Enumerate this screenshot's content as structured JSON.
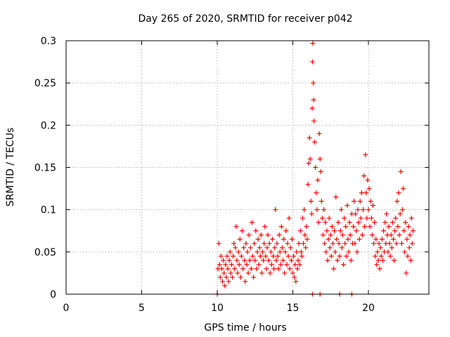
{
  "chart_data": {
    "type": "scatter",
    "title": "Day 265 of 2020, SRMTID for receiver p042",
    "xlabel": "GPS time / hours",
    "ylabel": "SRMTID / TECUs",
    "xlim": [
      0,
      24
    ],
    "ylim": [
      0,
      0.3
    ],
    "x_ticks": [
      0,
      5,
      10,
      15,
      20
    ],
    "x_tick_labels": [
      "0",
      "5",
      "10",
      "15",
      "20"
    ],
    "y_ticks": [
      0,
      0.05,
      0.1,
      0.15,
      0.2,
      0.25,
      0.3
    ],
    "y_tick_labels": [
      "0",
      "0.05",
      "0.1",
      "0.15",
      "0.2",
      "0.25",
      "0.3"
    ],
    "grid": true,
    "marker": "plus",
    "color": "#ff0000",
    "series": [
      {
        "name": "SRMTID",
        "points": [
          [
            10.0,
            0.0
          ],
          [
            10.05,
            0.03
          ],
          [
            10.1,
            0.06
          ],
          [
            10.15,
            0.035
          ],
          [
            10.2,
            0.02
          ],
          [
            10.25,
            0.045
          ],
          [
            10.3,
            0.03
          ],
          [
            10.35,
            0.015
          ],
          [
            10.4,
            0.04
          ],
          [
            10.45,
            0.025
          ],
          [
            10.5,
            0.01
          ],
          [
            10.55,
            0.035
          ],
          [
            10.6,
            0.02
          ],
          [
            10.65,
            0.045
          ],
          [
            10.7,
            0.03
          ],
          [
            10.75,
            0.015
          ],
          [
            10.8,
            0.04
          ],
          [
            10.85,
            0.05
          ],
          [
            10.9,
            0.025
          ],
          [
            10.95,
            0.035
          ],
          [
            11.0,
            0.02
          ],
          [
            11.05,
            0.045
          ],
          [
            11.1,
            0.06
          ],
          [
            11.15,
            0.03
          ],
          [
            11.2,
            0.055
          ],
          [
            11.25,
            0.08
          ],
          [
            11.3,
            0.04
          ],
          [
            11.35,
            0.025
          ],
          [
            11.4,
            0.05
          ],
          [
            11.45,
            0.035
          ],
          [
            11.5,
            0.065
          ],
          [
            11.55,
            0.02
          ],
          [
            11.6,
            0.045
          ],
          [
            11.65,
            0.075
          ],
          [
            11.7,
            0.03
          ],
          [
            11.75,
            0.055
          ],
          [
            11.8,
            0.04
          ],
          [
            11.85,
            0.015
          ],
          [
            11.9,
            0.06
          ],
          [
            11.95,
            0.035
          ],
          [
            12.0,
            0.05
          ],
          [
            12.05,
            0.025
          ],
          [
            12.1,
            0.07
          ],
          [
            12.15,
            0.04
          ],
          [
            12.2,
            0.055
          ],
          [
            12.25,
            0.03
          ],
          [
            12.3,
            0.085
          ],
          [
            12.35,
            0.045
          ],
          [
            12.4,
            0.02
          ],
          [
            12.45,
            0.06
          ],
          [
            12.5,
            0.04
          ],
          [
            12.55,
            0.075
          ],
          [
            12.6,
            0.03
          ],
          [
            12.65,
            0.05
          ],
          [
            12.7,
            0.065
          ],
          [
            12.75,
            0.035
          ],
          [
            12.8,
            0.055
          ],
          [
            12.85,
            0.045
          ],
          [
            12.9,
            0.07
          ],
          [
            12.95,
            0.025
          ],
          [
            13.0,
            0.05
          ],
          [
            13.05,
            0.04
          ],
          [
            13.1,
            0.06
          ],
          [
            13.15,
            0.08
          ],
          [
            13.2,
            0.045
          ],
          [
            13.25,
            0.03
          ],
          [
            13.3,
            0.055
          ],
          [
            13.35,
            0.07
          ],
          [
            13.4,
            0.04
          ],
          [
            13.45,
            0.06
          ],
          [
            13.5,
            0.025
          ],
          [
            13.55,
            0.05
          ],
          [
            13.6,
            0.035
          ],
          [
            13.65,
            0.065
          ],
          [
            13.7,
            0.045
          ],
          [
            13.75,
            0.03
          ],
          [
            13.8,
            0.055
          ],
          [
            13.85,
            0.1
          ],
          [
            13.9,
            0.04
          ],
          [
            13.95,
            0.06
          ],
          [
            14.0,
            0.045
          ],
          [
            14.05,
            0.03
          ],
          [
            14.1,
            0.07
          ],
          [
            14.15,
            0.05
          ],
          [
            14.2,
            0.035
          ],
          [
            14.25,
            0.08
          ],
          [
            14.3,
            0.055
          ],
          [
            14.35,
            0.04
          ],
          [
            14.4,
            0.065
          ],
          [
            14.45,
            0.025
          ],
          [
            14.5,
            0.05
          ],
          [
            14.55,
            0.075
          ],
          [
            14.6,
            0.035
          ],
          [
            14.65,
            0.06
          ],
          [
            14.7,
            0.045
          ],
          [
            14.75,
            0.09
          ],
          [
            14.8,
            0.03
          ],
          [
            14.85,
            0.055
          ],
          [
            14.9,
            0.04
          ],
          [
            14.95,
            0.065
          ],
          [
            15.0,
            0.025
          ],
          [
            15.05,
            0.045
          ],
          [
            15.1,
            0.02
          ],
          [
            15.15,
            0.035
          ],
          [
            15.2,
            0.015
          ],
          [
            15.25,
            0.05
          ],
          [
            15.3,
            0.03
          ],
          [
            15.35,
            0.04
          ],
          [
            15.4,
            0.06
          ],
          [
            15.45,
            0.035
          ],
          [
            15.5,
            0.075
          ],
          [
            15.55,
            0.05
          ],
          [
            15.6,
            0.045
          ],
          [
            15.65,
            0.09
          ],
          [
            15.7,
            0.06
          ],
          [
            15.75,
            0.1
          ],
          [
            15.8,
            0.07
          ],
          [
            15.85,
            0.055
          ],
          [
            15.9,
            0.08
          ],
          [
            15.95,
            0.065
          ],
          [
            16.0,
            0.13
          ],
          [
            16.05,
            0.155
          ],
          [
            16.1,
            0.185
          ],
          [
            16.15,
            0.16
          ],
          [
            16.2,
            0.11
          ],
          [
            16.25,
            0.095
          ],
          [
            16.28,
            0.22
          ],
          [
            16.3,
            0.275
          ],
          [
            16.32,
            0.297
          ],
          [
            16.35,
            0.25
          ],
          [
            16.38,
            0.23
          ],
          [
            16.4,
            0.205
          ],
          [
            16.45,
            0.18
          ],
          [
            16.5,
            0.15
          ],
          [
            16.55,
            0.12
          ],
          [
            16.6,
            0.1
          ],
          [
            16.65,
            0.135
          ],
          [
            16.7,
            0.085
          ],
          [
            16.75,
            0.19
          ],
          [
            16.8,
            0.16
          ],
          [
            16.85,
            0.145
          ],
          [
            16.9,
            0.11
          ],
          [
            16.95,
            0.09
          ],
          [
            17.0,
            0.07
          ],
          [
            17.05,
            0.1
          ],
          [
            17.1,
            0.06
          ],
          [
            17.15,
            0.085
          ],
          [
            17.2,
            0.05
          ],
          [
            17.25,
            0.075
          ],
          [
            17.3,
            0.04
          ],
          [
            17.35,
            0.065
          ],
          [
            17.4,
            0.09
          ],
          [
            17.45,
            0.055
          ],
          [
            17.5,
            0.07
          ],
          [
            17.55,
            0.045
          ],
          [
            17.6,
            0.08
          ],
          [
            17.65,
            0.06
          ],
          [
            17.7,
            0.03
          ],
          [
            17.75,
            0.075
          ],
          [
            17.8,
            0.05
          ],
          [
            17.85,
            0.115
          ],
          [
            17.9,
            0.065
          ],
          [
            17.95,
            0.04
          ],
          [
            18.0,
            0.085
          ],
          [
            18.05,
            0.06
          ],
          [
            18.1,
            0.045
          ],
          [
            18.15,
            0.075
          ],
          [
            18.2,
            0.1
          ],
          [
            18.25,
            0.055
          ],
          [
            18.3,
            0.07
          ],
          [
            18.35,
            0.035
          ],
          [
            18.4,
            0.09
          ],
          [
            18.45,
            0.06
          ],
          [
            18.5,
            0.08
          ],
          [
            18.55,
            0.045
          ],
          [
            18.6,
            0.105
          ],
          [
            18.65,
            0.065
          ],
          [
            18.7,
            0.05
          ],
          [
            18.75,
            0.085
          ],
          [
            18.8,
            0.07
          ],
          [
            18.85,
            0.04
          ],
          [
            18.9,
            0.095
          ],
          [
            18.95,
            0.06
          ],
          [
            19.0,
            0.08
          ],
          [
            19.05,
            0.11
          ],
          [
            19.1,
            0.06
          ],
          [
            19.15,
            0.095
          ],
          [
            19.2,
            0.075
          ],
          [
            19.25,
            0.05
          ],
          [
            19.3,
            0.1
          ],
          [
            19.35,
            0.085
          ],
          [
            19.4,
            0.065
          ],
          [
            19.45,
            0.11
          ],
          [
            19.5,
            0.09
          ],
          [
            19.55,
            0.12
          ],
          [
            19.6,
            0.07
          ],
          [
            19.65,
            0.1
          ],
          [
            19.7,
            0.14
          ],
          [
            19.75,
            0.08
          ],
          [
            19.8,
            0.165
          ],
          [
            19.85,
            0.12
          ],
          [
            19.9,
            0.09
          ],
          [
            19.95,
            0.135
          ],
          [
            20.0,
            0.1
          ],
          [
            20.05,
            0.125
          ],
          [
            20.1,
            0.08
          ],
          [
            20.15,
            0.11
          ],
          [
            20.2,
            0.09
          ],
          [
            20.25,
            0.07
          ],
          [
            20.3,
            0.105
          ],
          [
            20.35,
            0.06
          ],
          [
            20.4,
            0.085
          ],
          [
            20.45,
            0.045
          ],
          [
            20.5,
            0.065
          ],
          [
            20.55,
            0.035
          ],
          [
            20.6,
            0.05
          ],
          [
            20.65,
            0.04
          ],
          [
            20.7,
            0.06
          ],
          [
            20.75,
            0.03
          ],
          [
            20.8,
            0.055
          ],
          [
            20.85,
            0.045
          ],
          [
            20.9,
            0.065
          ],
          [
            20.95,
            0.04
          ],
          [
            21.0,
            0.075
          ],
          [
            21.05,
            0.05
          ],
          [
            21.1,
            0.085
          ],
          [
            21.15,
            0.06
          ],
          [
            21.2,
            0.095
          ],
          [
            21.25,
            0.07
          ],
          [
            21.3,
            0.05
          ],
          [
            21.35,
            0.08
          ],
          [
            21.4,
            0.06
          ],
          [
            21.45,
            0.045
          ],
          [
            21.5,
            0.07
          ],
          [
            21.55,
            0.055
          ],
          [
            21.6,
            0.085
          ],
          [
            21.65,
            0.065
          ],
          [
            21.7,
            0.04
          ],
          [
            21.75,
            0.075
          ],
          [
            21.8,
            0.09
          ],
          [
            21.85,
            0.06
          ],
          [
            21.9,
            0.11
          ],
          [
            21.95,
            0.08
          ],
          [
            22.0,
            0.12
          ],
          [
            22.05,
            0.07
          ],
          [
            22.1,
            0.095
          ],
          [
            22.15,
            0.145
          ],
          [
            22.2,
            0.06
          ],
          [
            22.25,
            0.1
          ],
          [
            22.3,
            0.125
          ],
          [
            22.35,
            0.075
          ],
          [
            22.4,
            0.05
          ],
          [
            22.45,
            0.085
          ],
          [
            22.5,
            0.025
          ],
          [
            22.55,
            0.065
          ],
          [
            22.6,
            0.045
          ],
          [
            22.65,
            0.08
          ],
          [
            22.7,
            0.055
          ],
          [
            22.75,
            0.07
          ],
          [
            22.8,
            0.04
          ],
          [
            22.85,
            0.09
          ],
          [
            22.9,
            0.06
          ],
          [
            22.95,
            0.075
          ],
          [
            16.3,
            0.0
          ],
          [
            16.8,
            0.0
          ],
          [
            18.1,
            0.0
          ],
          [
            18.9,
            0.0
          ]
        ]
      }
    ]
  }
}
